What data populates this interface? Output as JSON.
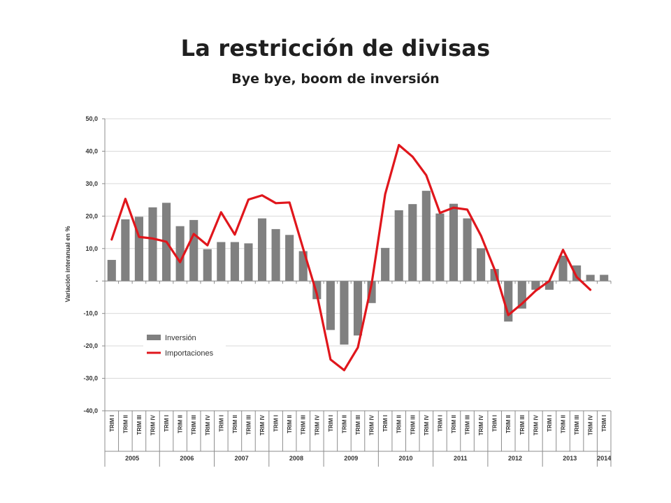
{
  "title": "La restricción de divisas",
  "subtitle": "Bye bye, boom de inversión",
  "chart_data": {
    "type": "bar",
    "ylabel": "Variación interanual  en %",
    "ylim": [
      -40,
      50
    ],
    "yticks": [
      {
        "value": 50,
        "label": "50,0"
      },
      {
        "value": 40,
        "label": "40,0"
      },
      {
        "value": 30,
        "label": "30,0"
      },
      {
        "value": 20,
        "label": "20,0"
      },
      {
        "value": 10,
        "label": "10,0"
      },
      {
        "value": 0,
        "label": "-"
      },
      {
        "value": -10,
        "label": "-10,0"
      },
      {
        "value": -20,
        "label": "-20,0"
      },
      {
        "value": -30,
        "label": "-30,0"
      },
      {
        "value": -40,
        "label": "-40,0"
      }
    ],
    "grid": true,
    "legend_position": "lower-left",
    "categories": [
      "TRIM I",
      "TRIM II",
      "TRIM III",
      "TRIM IV",
      "TRIM I",
      "TRIM II",
      "TRIM III",
      "TRIM IV",
      "TRIM I",
      "TRIM II",
      "TRIM III",
      "TRIM IV",
      "TRIM I",
      "TRIM II",
      "TRIM III",
      "TRIM IV",
      "TRIM I",
      "TRIM II",
      "TRIM III",
      "TRIM IV",
      "TRIM I",
      "TRIM II",
      "TRIM III",
      "TRIM IV",
      "TRIM I",
      "TRIM II",
      "TRIM III",
      "TRIM IV",
      "TRIM I",
      "TRIM II",
      "TRIM III",
      "TRIM IV",
      "TRIM I",
      "TRIM II",
      "TRIM III",
      "TRIM IV",
      "TRIM I"
    ],
    "years": [
      {
        "label": "2005",
        "start": 0,
        "count": 4
      },
      {
        "label": "2006",
        "start": 4,
        "count": 4
      },
      {
        "label": "2007",
        "start": 8,
        "count": 4
      },
      {
        "label": "2008",
        "start": 12,
        "count": 4
      },
      {
        "label": "2009",
        "start": 16,
        "count": 4
      },
      {
        "label": "2010",
        "start": 20,
        "count": 4
      },
      {
        "label": "2011",
        "start": 24,
        "count": 4
      },
      {
        "label": "2012",
        "start": 28,
        "count": 4
      },
      {
        "label": "2013",
        "start": 32,
        "count": 4
      },
      {
        "label": "2014",
        "start": 36,
        "count": 1
      }
    ],
    "series": [
      {
        "name": "Inversión",
        "type": "bar",
        "color": "#808080",
        "values": [
          6.5,
          19.0,
          19.8,
          22.7,
          24.1,
          16.9,
          18.8,
          9.8,
          12.0,
          12.0,
          11.6,
          19.3,
          16.0,
          14.2,
          9.2,
          -5.6,
          -15.1,
          -19.6,
          -16.8,
          -6.8,
          10.2,
          21.8,
          23.7,
          27.8,
          20.8,
          23.8,
          19.3,
          10.1,
          3.7,
          -12.5,
          -8.5,
          -2.7,
          -2.7,
          7.8,
          4.8,
          1.9,
          1.9
        ]
      },
      {
        "name": "Importaciones",
        "type": "line",
        "color": "#e0161c",
        "values": [
          12.8,
          25.3,
          13.6,
          13.1,
          12.1,
          5.8,
          14.5,
          11.0,
          21.2,
          14.3,
          25.1,
          26.4,
          24.0,
          24.2,
          10.0,
          -4.0,
          -24.2,
          -27.5,
          -20.5,
          -1.0,
          26.8,
          41.9,
          38.3,
          32.6,
          21.0,
          22.6,
          22.0,
          14.0,
          3.5,
          -10.5,
          -7.0,
          -3.0,
          0.0,
          9.6,
          1.2,
          -2.7,
          null
        ]
      }
    ]
  }
}
